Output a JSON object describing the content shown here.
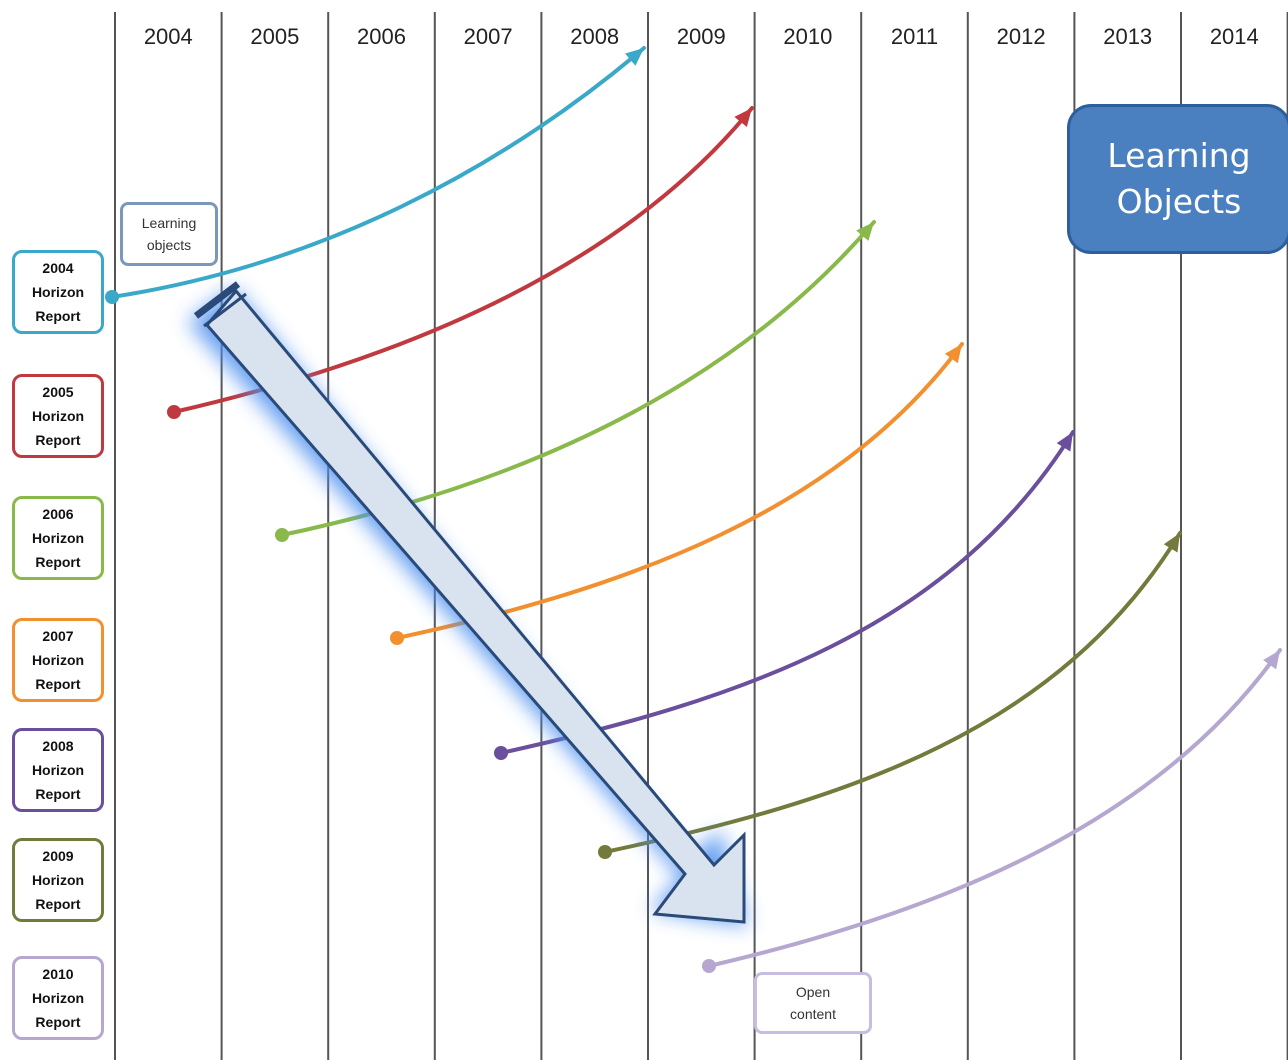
{
  "timeline": {
    "years": [
      "2004",
      "2005",
      "2006",
      "2007",
      "2008",
      "2009",
      "2010",
      "2011",
      "2012",
      "2013",
      "2014"
    ]
  },
  "reports": [
    {
      "label": "2004\nHorizon\nReport",
      "color": "#3aa8c8"
    },
    {
      "label": "2005\nHorizon\nReport",
      "color": "#c0393f"
    },
    {
      "label": "2006\nHorizon\nReport",
      "color": "#88b94a"
    },
    {
      "label": "2007\nHorizon\nReport",
      "color": "#f28f2e"
    },
    {
      "label": "2008\nHorizon\nReport",
      "color": "#6a4f9c"
    },
    {
      "label": "2009\nHorizon\nReport",
      "color": "#737a3b"
    },
    {
      "label": "2010\nHorizon\nReport",
      "color": "#b5a7cf"
    }
  ],
  "notes": {
    "start": "Learning\nobjects",
    "end": "Open\ncontent"
  },
  "title": "Learning\nObjects",
  "colors": {
    "gridline": "#555555",
    "big_arrow_fill": "#d9e3ef",
    "big_arrow_stroke": "#2a4a7a",
    "big_arrow_glow": "#4c8ff0",
    "title_fill": "#4a7fc0"
  }
}
